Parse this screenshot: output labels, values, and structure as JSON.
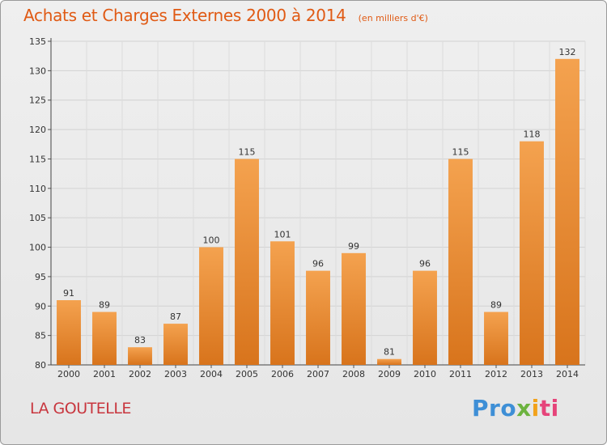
{
  "header": {
    "title": "Achats et Charges Externes 2000 à 2014",
    "subtitle": "(en milliers d'€)"
  },
  "footer": {
    "town": "LA GOUTELLE",
    "brand_parts": [
      "Pro",
      "x",
      "i",
      "ti"
    ]
  },
  "colors": {
    "bar_light": "#f4a24f",
    "bar_dark": "#d8741c",
    "title": "#e05a14",
    "town": "#c8363e"
  },
  "chart_data": {
    "type": "bar",
    "title": "Achats et Charges Externes 2000 à 2014",
    "subtitle": "(en milliers d'€)",
    "xlabel": "",
    "ylabel": "",
    "categories": [
      "2000",
      "2001",
      "2002",
      "2003",
      "2004",
      "2005",
      "2006",
      "2007",
      "2008",
      "2009",
      "2010",
      "2011",
      "2012",
      "2013",
      "2014"
    ],
    "values": [
      91,
      89,
      83,
      87,
      100,
      115,
      101,
      96,
      99,
      81,
      96,
      115,
      89,
      118,
      132
    ],
    "ylim": [
      80,
      135
    ],
    "yticks": [
      80,
      85,
      90,
      95,
      100,
      105,
      110,
      115,
      120,
      125,
      130,
      135
    ],
    "grid": true,
    "data_labels": true
  }
}
